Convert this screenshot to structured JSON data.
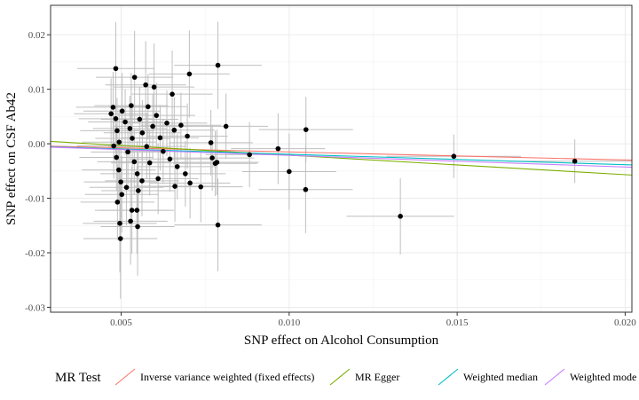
{
  "chart_data": {
    "type": "scatter",
    "xlabel": "SNP effect on Alcohol Consumption",
    "ylabel": "SNP effect on CSF Ab42",
    "xlim": [
      0.0029,
      0.0202
    ],
    "ylim": [
      -0.0309,
      0.0254
    ],
    "x_ticks": [
      0.005,
      0.01,
      0.015,
      0.02
    ],
    "x_tick_labels": [
      "0.005",
      "0.010",
      "0.015",
      "0.020"
    ],
    "y_ticks": [
      -0.03,
      -0.02,
      -0.01,
      0.0,
      0.01,
      0.02
    ],
    "y_tick_labels": [
      "-0.03",
      "-0.02",
      "-0.01",
      "0.00",
      "0.01",
      "0.02"
    ],
    "grid": true,
    "legend_position": "bottom",
    "legend_title": "MR Test",
    "lines": [
      {
        "name": "Inverse variance weighted (fixed effects)",
        "color": "#F8766D",
        "intercept": 0,
        "slope": -0.149
      },
      {
        "name": "MR Egger",
        "color": "#7CAE00",
        "intercept": 0.00147,
        "slope": -0.357
      },
      {
        "name": "Weighted median",
        "color": "#00BFC4",
        "intercept": 0,
        "slope": -0.192
      },
      {
        "name": "Weighted mode",
        "color": "#C77CFF",
        "intercept": 0,
        "slope": -0.213
      }
    ],
    "points": [
      {
        "x": 0.00484,
        "y": 0.0138,
        "xse": 0.00115,
        "yse": 0.0085
      },
      {
        "x": 0.00503,
        "y": 0.006,
        "xse": 0.00115,
        "yse": 0.007
      },
      {
        "x": 0.0054,
        "y": 0.0122,
        "xse": 0.00115,
        "yse": 0.0085
      },
      {
        "x": 0.00573,
        "y": 0.0108,
        "xse": 0.0012,
        "yse": 0.008
      },
      {
        "x": 0.00598,
        "y": 0.0104,
        "xse": 0.0012,
        "yse": 0.008
      },
      {
        "x": 0.00652,
        "y": 0.0091,
        "xse": 0.0012,
        "yse": 0.008
      },
      {
        "x": 0.00703,
        "y": 0.0128,
        "xse": 0.0012,
        "yse": 0.008
      },
      {
        "x": 0.00788,
        "y": 0.0144,
        "xse": 0.0013,
        "yse": 0.008
      },
      {
        "x": 0.00476,
        "y": 0.0067,
        "xse": 0.0011,
        "yse": 0.0065
      },
      {
        "x": 0.00484,
        "y": 0.0046,
        "xse": 0.0011,
        "yse": 0.0065
      },
      {
        "x": 0.00488,
        "y": 0.0024,
        "xse": 0.0011,
        "yse": 0.006
      },
      {
        "x": 0.00494,
        "y": 0.0003,
        "xse": 0.0011,
        "yse": 0.006
      },
      {
        "x": 0.00478,
        "y": -0.0004,
        "xse": 0.0011,
        "yse": 0.006
      },
      {
        "x": 0.00486,
        "y": -0.0025,
        "xse": 0.0011,
        "yse": 0.006
      },
      {
        "x": 0.00493,
        "y": -0.0048,
        "xse": 0.0011,
        "yse": 0.006
      },
      {
        "x": 0.00499,
        "y": -0.007,
        "xse": 0.0011,
        "yse": 0.0065
      },
      {
        "x": 0.00512,
        "y": 0.004,
        "xse": 0.0011,
        "yse": 0.006
      },
      {
        "x": 0.00526,
        "y": 0.0028,
        "xse": 0.0011,
        "yse": 0.006
      },
      {
        "x": 0.00533,
        "y": 0.001,
        "xse": 0.0011,
        "yse": 0.006
      },
      {
        "x": 0.0052,
        "y": -0.0015,
        "xse": 0.0011,
        "yse": 0.006
      },
      {
        "x": 0.00539,
        "y": -0.0033,
        "xse": 0.0011,
        "yse": 0.006
      },
      {
        "x": 0.00548,
        "y": -0.0055,
        "xse": 0.0011,
        "yse": 0.006
      },
      {
        "x": 0.00555,
        "y": 0.0045,
        "xse": 0.00115,
        "yse": 0.006
      },
      {
        "x": 0.00563,
        "y": 0.002,
        "xse": 0.00115,
        "yse": 0.006
      },
      {
        "x": 0.00576,
        "y": -0.0005,
        "xse": 0.00115,
        "yse": 0.006
      },
      {
        "x": 0.00585,
        "y": -0.0035,
        "xse": 0.00115,
        "yse": 0.006
      },
      {
        "x": 0.00594,
        "y": 0.0032,
        "xse": 0.00115,
        "yse": 0.006
      },
      {
        "x": 0.00605,
        "y": 0.0052,
        "xse": 0.00115,
        "yse": 0.006
      },
      {
        "x": 0.00616,
        "y": 0.0011,
        "xse": 0.00115,
        "yse": 0.006
      },
      {
        "x": 0.00625,
        "y": -0.0014,
        "xse": 0.00115,
        "yse": 0.006
      },
      {
        "x": 0.00636,
        "y": 0.0038,
        "xse": 0.0012,
        "yse": 0.006
      },
      {
        "x": 0.00645,
        "y": -0.0028,
        "xse": 0.0012,
        "yse": 0.006
      },
      {
        "x": 0.00658,
        "y": 0.0025,
        "xse": 0.0012,
        "yse": 0.006
      },
      {
        "x": 0.00667,
        "y": -0.0042,
        "xse": 0.0012,
        "yse": 0.006
      },
      {
        "x": 0.00678,
        "y": 0.0034,
        "xse": 0.0012,
        "yse": 0.006
      },
      {
        "x": 0.00691,
        "y": -0.0055,
        "xse": 0.0012,
        "yse": 0.006
      },
      {
        "x": 0.00697,
        "y": 0.0014,
        "xse": 0.0012,
        "yse": 0.006
      },
      {
        "x": 0.0058,
        "y": 0.0068,
        "xse": 0.00115,
        "yse": 0.006
      },
      {
        "x": 0.0053,
        "y": 0.007,
        "xse": 0.0011,
        "yse": 0.006
      },
      {
        "x": 0.0047,
        "y": 0.0055,
        "xse": 0.0011,
        "yse": 0.0065
      },
      {
        "x": 0.00489,
        "y": -0.0107,
        "xse": 0.0011,
        "yse": 0.007
      },
      {
        "x": 0.00502,
        "y": -0.0093,
        "xse": 0.0011,
        "yse": 0.007
      },
      {
        "x": 0.00496,
        "y": -0.0146,
        "xse": 0.0011,
        "yse": 0.009
      },
      {
        "x": 0.00498,
        "y": -0.0174,
        "xse": 0.0011,
        "yse": 0.011
      },
      {
        "x": 0.00516,
        "y": -0.008,
        "xse": 0.0011,
        "yse": 0.007
      },
      {
        "x": 0.00528,
        "y": -0.0142,
        "xse": 0.0011,
        "yse": 0.008
      },
      {
        "x": 0.00532,
        "y": -0.0122,
        "xse": 0.0011,
        "yse": 0.008
      },
      {
        "x": 0.00547,
        "y": -0.0122,
        "xse": 0.0011,
        "yse": 0.008
      },
      {
        "x": 0.00549,
        "y": -0.0152,
        "xse": 0.0011,
        "yse": 0.009
      },
      {
        "x": 0.00551,
        "y": -0.0086,
        "xse": 0.0011,
        "yse": 0.007
      },
      {
        "x": 0.00562,
        "y": -0.0068,
        "xse": 0.0011,
        "yse": 0.0065
      },
      {
        "x": 0.0061,
        "y": -0.0064,
        "xse": 0.0012,
        "yse": 0.0065
      },
      {
        "x": 0.0066,
        "y": -0.0078,
        "xse": 0.0012,
        "yse": 0.0065
      },
      {
        "x": 0.00705,
        "y": -0.0072,
        "xse": 0.0012,
        "yse": 0.0065
      },
      {
        "x": 0.00737,
        "y": -0.0079,
        "xse": 0.00125,
        "yse": 0.0065
      },
      {
        "x": 0.00767,
        "y": 0.0002,
        "xse": 0.00125,
        "yse": 0.006
      },
      {
        "x": 0.00771,
        "y": -0.0026,
        "xse": 0.00125,
        "yse": 0.006
      },
      {
        "x": 0.0078,
        "y": -0.0036,
        "xse": 0.00125,
        "yse": 0.006
      },
      {
        "x": 0.00785,
        "y": -0.0034,
        "xse": 0.00125,
        "yse": 0.006
      },
      {
        "x": 0.00812,
        "y": 0.0032,
        "xse": 0.00125,
        "yse": 0.006
      },
      {
        "x": 0.00788,
        "y": -0.0149,
        "xse": 0.0013,
        "yse": 0.0085
      },
      {
        "x": 0.00882,
        "y": -0.002,
        "xse": 0.0013,
        "yse": 0.006
      },
      {
        "x": 0.00967,
        "y": -0.0009,
        "xse": 0.0014,
        "yse": 0.0065
      },
      {
        "x": 0.01,
        "y": -0.0051,
        "xse": 0.0014,
        "yse": 0.007
      },
      {
        "x": 0.0105,
        "y": 0.0026,
        "xse": 0.0014,
        "yse": 0.006
      },
      {
        "x": 0.01049,
        "y": -0.0084,
        "xse": 0.0014,
        "yse": 0.008
      },
      {
        "x": 0.01331,
        "y": -0.0133,
        "xse": 0.0016,
        "yse": 0.007
      },
      {
        "x": 0.0149,
        "y": -0.0023,
        "xse": 0.002,
        "yse": 0.004
      },
      {
        "x": 0.0185,
        "y": -0.0032,
        "xse": 0.002,
        "yse": 0.004
      }
    ]
  }
}
